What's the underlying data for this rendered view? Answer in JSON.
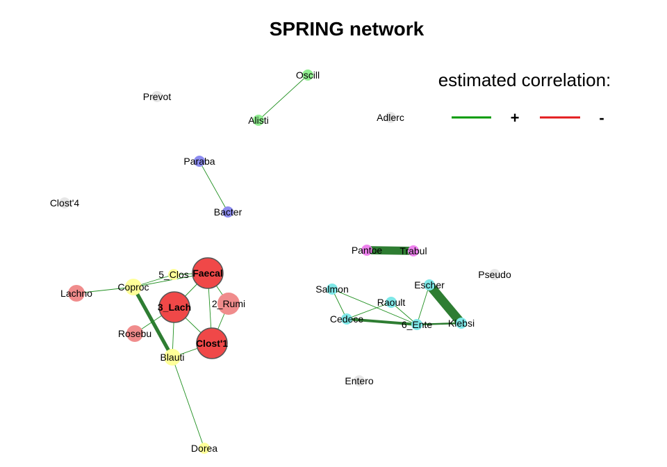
{
  "title": "SPRING network",
  "legend": {
    "title": "estimated correlation:",
    "positive": {
      "label": "+",
      "color": "#009900"
    },
    "negative": {
      "label": "-",
      "color": "#e31a1c"
    }
  },
  "nodes": [
    {
      "id": "Oscill",
      "label": "Oscill",
      "color": "#90ee90",
      "hub": false,
      "size": "small"
    },
    {
      "id": "Alisti",
      "label": "Alisti",
      "color": "#90ee90",
      "hub": false,
      "size": "small"
    },
    {
      "id": "Prevot",
      "label": "Prevot",
      "color": "#e6e6e6",
      "hub": false,
      "size": "small"
    },
    {
      "id": "Adlerc",
      "label": "Adlerc",
      "color": "#e6e6e6",
      "hub": false,
      "size": "small"
    },
    {
      "id": "Paraba",
      "label": "Paraba",
      "color": "#8c8cf0",
      "hub": false,
      "size": "small"
    },
    {
      "id": "Bacter",
      "label": "Bacter",
      "color": "#8c8cf0",
      "hub": false,
      "size": "small"
    },
    {
      "id": "Clost4",
      "label": "Clost'4",
      "color": "#e6e6e6",
      "hub": false,
      "size": "small"
    },
    {
      "id": "Pantoe",
      "label": "Pantoe",
      "color": "#ee82ee",
      "hub": false,
      "size": "small"
    },
    {
      "id": "Trabul",
      "label": "Trabul",
      "color": "#ee82ee",
      "hub": false,
      "size": "small"
    },
    {
      "id": "Pseudo",
      "label": "Pseudo",
      "color": "#e6e6e6",
      "hub": false,
      "size": "small"
    },
    {
      "id": "Escher",
      "label": "Escher",
      "color": "#7fe8e8",
      "hub": false,
      "size": "small"
    },
    {
      "id": "Salmon",
      "label": "Salmon",
      "color": "#7fe8e8",
      "hub": false,
      "size": "small"
    },
    {
      "id": "Raoult",
      "label": "Raoult",
      "color": "#7fe8e8",
      "hub": false,
      "size": "small"
    },
    {
      "id": "Cedece",
      "label": "Cedece",
      "color": "#7fe8e8",
      "hub": false,
      "size": "small"
    },
    {
      "id": "6_Ente",
      "label": "6_Ente",
      "color": "#7fe8e8",
      "hub": false,
      "size": "small"
    },
    {
      "id": "Klebsi",
      "label": "Klebsi",
      "color": "#7fe8e8",
      "hub": false,
      "size": "small"
    },
    {
      "id": "Entero",
      "label": "Entero",
      "color": "#e6e6e6",
      "hub": false,
      "size": "small"
    },
    {
      "id": "5_Clos",
      "label": "5_Clos",
      "color": "#ffff99",
      "hub": false,
      "size": "small"
    },
    {
      "id": "Faecal",
      "label": "Faecal",
      "color": "#f04848",
      "hub": true,
      "size": "large"
    },
    {
      "id": "Lachno",
      "label": "Lachno",
      "color": "#f08c8c",
      "hub": false,
      "size": "medium"
    },
    {
      "id": "Coproc",
      "label": "Coproc",
      "color": "#ffff99",
      "hub": false,
      "size": "medium"
    },
    {
      "id": "3_Lach",
      "label": "3_Lach",
      "color": "#f04848",
      "hub": true,
      "size": "large"
    },
    {
      "id": "2_Rumi",
      "label": "2_Rumi",
      "color": "#f08c8c",
      "hub": false,
      "size": "medium-large"
    },
    {
      "id": "Rosebu",
      "label": "Rosebu",
      "color": "#f08c8c",
      "hub": false,
      "size": "medium"
    },
    {
      "id": "Clost1",
      "label": "Clost'1",
      "color": "#f04848",
      "hub": true,
      "size": "large"
    },
    {
      "id": "Blauti",
      "label": "Blauti",
      "color": "#ffff99",
      "hub": false,
      "size": "medium"
    },
    {
      "id": "Dorea",
      "label": "Dorea",
      "color": "#ffff99",
      "hub": false,
      "size": "small"
    }
  ],
  "edges": [
    {
      "from": "Oscill",
      "to": "Alisti",
      "sign": "+",
      "weight": 1
    },
    {
      "from": "Paraba",
      "to": "Bacter",
      "sign": "+",
      "weight": 1
    },
    {
      "from": "Pantoe",
      "to": "Trabul",
      "sign": "+",
      "weight": 9
    },
    {
      "from": "Escher",
      "to": "Klebsi",
      "sign": "+",
      "weight": 10
    },
    {
      "from": "Escher",
      "to": "6_Ente",
      "sign": "+",
      "weight": 1
    },
    {
      "from": "Salmon",
      "to": "Cedece",
      "sign": "+",
      "weight": 1
    },
    {
      "from": "Salmon",
      "to": "6_Ente",
      "sign": "+",
      "weight": 1
    },
    {
      "from": "Raoult",
      "to": "Cedece",
      "sign": "+",
      "weight": 1
    },
    {
      "from": "Raoult",
      "to": "6_Ente",
      "sign": "+",
      "weight": 1
    },
    {
      "from": "Cedece",
      "to": "6_Ente",
      "sign": "+",
      "weight": 3
    },
    {
      "from": "6_Ente",
      "to": "Klebsi",
      "sign": "+",
      "weight": 2
    },
    {
      "from": "Lachno",
      "to": "Coproc",
      "sign": "+",
      "weight": 1
    },
    {
      "from": "Coproc",
      "to": "5_Clos",
      "sign": "+",
      "weight": 1
    },
    {
      "from": "Coproc",
      "to": "Faecal",
      "sign": "+",
      "weight": 1
    },
    {
      "from": "Coproc",
      "to": "Blauti",
      "sign": "+",
      "weight": 4
    },
    {
      "from": "5_Clos",
      "to": "Faecal",
      "sign": "+",
      "weight": 1
    },
    {
      "from": "Faecal",
      "to": "3_Lach",
      "sign": "+",
      "weight": 1
    },
    {
      "from": "Faecal",
      "to": "2_Rumi",
      "sign": "+",
      "weight": 1
    },
    {
      "from": "Faecal",
      "to": "Clost1",
      "sign": "+",
      "weight": 1
    },
    {
      "from": "3_Lach",
      "to": "Clost1",
      "sign": "+",
      "weight": 1
    },
    {
      "from": "3_Lach",
      "to": "Rosebu",
      "sign": "+",
      "weight": 1
    },
    {
      "from": "3_Lach",
      "to": "Blauti",
      "sign": "+",
      "weight": 1
    },
    {
      "from": "2_Rumi",
      "to": "Clost1",
      "sign": "+",
      "weight": 1
    },
    {
      "from": "Blauti",
      "to": "Clost1",
      "sign": "+",
      "weight": 1
    },
    {
      "from": "Blauti",
      "to": "Dorea",
      "sign": "+",
      "weight": 1
    }
  ]
}
